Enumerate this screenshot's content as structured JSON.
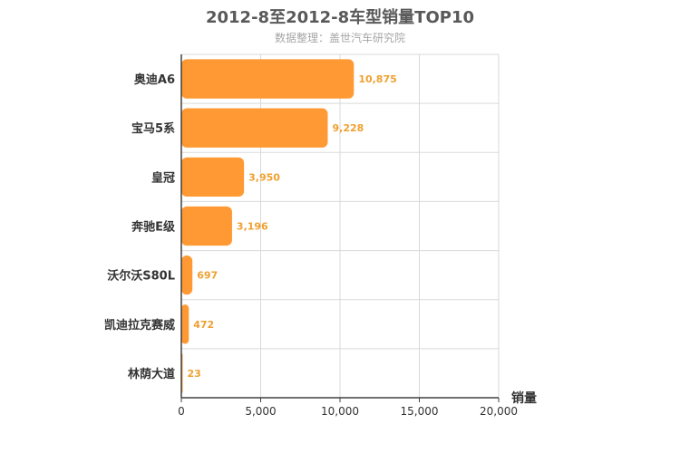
{
  "chart_data": {
    "type": "bar",
    "orientation": "horizontal",
    "title": "2012-8至2012-8车型销量TOP10",
    "subtitle": "数据整理：盖世汽车研究院",
    "xlabel": "销量",
    "ylabel": "",
    "categories": [
      "奥迪A6",
      "宝马5系",
      "皇冠",
      "奔驰E级",
      "沃尔沃S80L",
      "凯迪拉克赛威",
      "林荫大道"
    ],
    "values": [
      10875,
      9228,
      3950,
      3196,
      697,
      472,
      23
    ],
    "value_labels": [
      "10,875",
      "9,228",
      "3,950",
      "3,196",
      "697",
      "472",
      "23"
    ],
    "xlim": [
      0,
      20000
    ],
    "x_ticks": [
      0,
      5000,
      10000,
      15000,
      20000
    ],
    "x_tick_labels": [
      "0",
      "5,000",
      "10,000",
      "15,000",
      "20,000"
    ],
    "grid": true,
    "colors": {
      "bar": "#ff9933",
      "value_label": "#f0a030",
      "grid": "#d9d9d9",
      "axis": "#404040",
      "category_label": "#333333"
    }
  }
}
